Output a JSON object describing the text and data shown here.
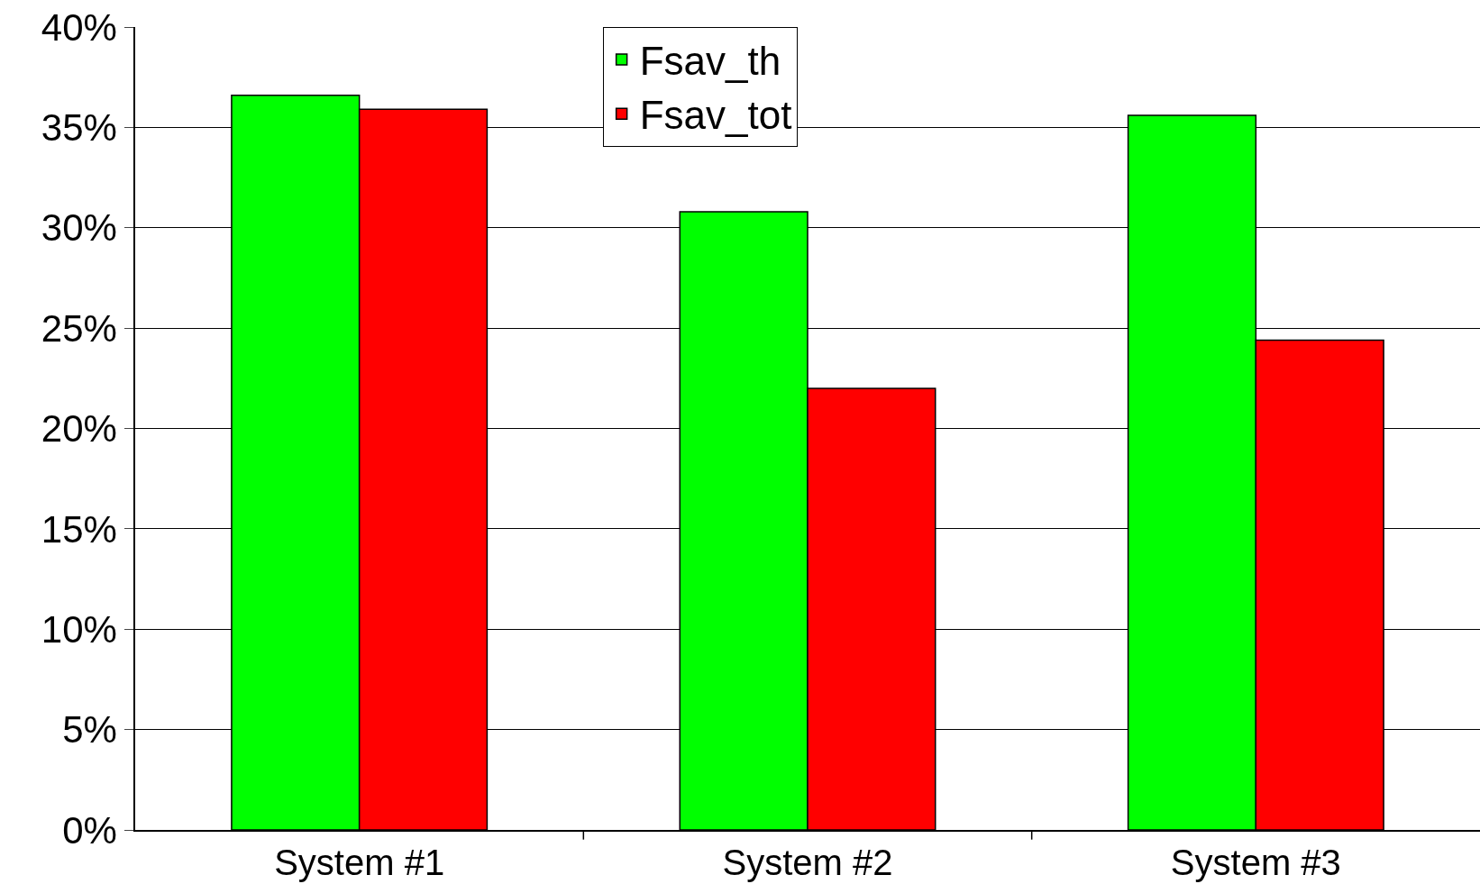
{
  "chart_data": {
    "type": "bar",
    "categories": [
      "System #1",
      "System #2",
      "System #3"
    ],
    "series": [
      {
        "name": "Fsav_th",
        "color": "#00ff00",
        "values": [
          36.6,
          30.8,
          35.6
        ]
      },
      {
        "name": "Fsav_tot",
        "color": "#ff0000",
        "values": [
          35.9,
          22.0,
          24.4
        ]
      }
    ],
    "ylim": [
      0,
      40
    ],
    "yticks": [
      {
        "value": 0,
        "label": "0%"
      },
      {
        "value": 5,
        "label": "5%"
      },
      {
        "value": 10,
        "label": "10%"
      },
      {
        "value": 15,
        "label": "15%"
      },
      {
        "value": 20,
        "label": "20%"
      },
      {
        "value": 25,
        "label": "25%"
      },
      {
        "value": 30,
        "label": "30%"
      },
      {
        "value": 35,
        "label": "35%"
      },
      {
        "value": 40,
        "label": "40%"
      }
    ],
    "grid": "y",
    "legend": "top"
  }
}
